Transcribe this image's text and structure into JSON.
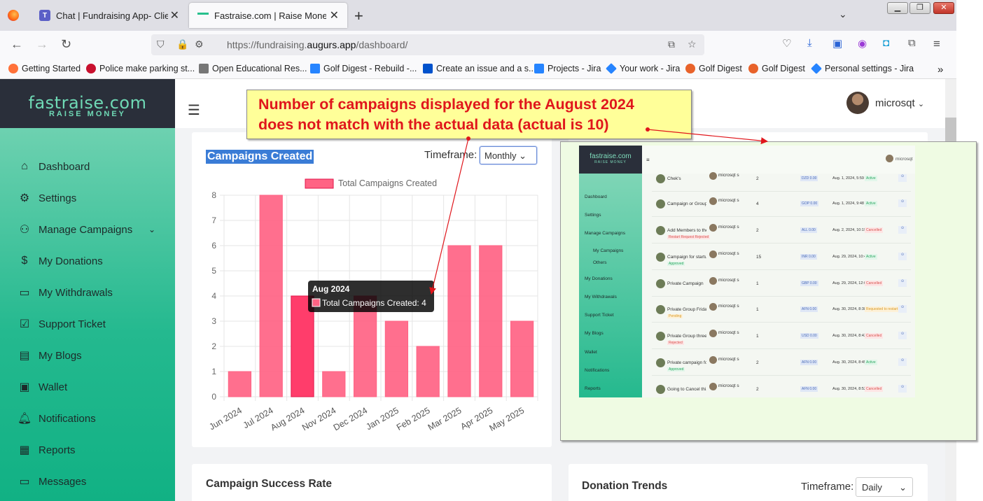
{
  "browser": {
    "tabs": [
      {
        "title": "Chat | Fundraising App- Client (",
        "icon": "teams-icon"
      },
      {
        "title": "Fastraise.com | Raise Money",
        "icon": "fastraise-icon"
      }
    ],
    "url_prefix": "https://fundraising.",
    "url_domain": "augurs.app",
    "url_suffix": "/dashboard/",
    "bookmarks": [
      {
        "label": "Getting Started",
        "color": "#ff7139"
      },
      {
        "label": "Police make parking st...",
        "color": "#c8102e"
      },
      {
        "label": "Open Educational Res...",
        "color": "#666666"
      },
      {
        "label": "Golf Digest - Rebuild -...",
        "color": "#2684ff"
      },
      {
        "label": "Create an issue and a s...",
        "color": "#0052cc"
      },
      {
        "label": "Projects - Jira",
        "color": "#2684ff"
      },
      {
        "label": "Your work - Jira",
        "color": "#2684ff"
      },
      {
        "label": "Golf Digest",
        "color": "#e8622a"
      },
      {
        "label": "Golf Digest",
        "color": "#e8622a"
      },
      {
        "label": "Personal settings - Jira",
        "color": "#2684ff"
      }
    ]
  },
  "brand": {
    "name": "fastraise.com",
    "tagline": "RAISE MONEY"
  },
  "sidebar": {
    "items": [
      {
        "label": "Dashboard",
        "icon": "home-icon"
      },
      {
        "label": "Settings",
        "icon": "gear-icon"
      },
      {
        "label": "Manage Campaigns",
        "icon": "users-icon"
      },
      {
        "label": "My Donations",
        "icon": "dollar-icon"
      },
      {
        "label": "My Withdrawals",
        "icon": "card-icon"
      },
      {
        "label": "Support Ticket",
        "icon": "ticket-icon"
      },
      {
        "label": "My Blogs",
        "icon": "blog-icon"
      },
      {
        "label": "Wallet",
        "icon": "wallet-icon"
      },
      {
        "label": "Notifications",
        "icon": "bell-icon"
      },
      {
        "label": "Reports",
        "icon": "report-icon"
      },
      {
        "label": "Messages",
        "icon": "message-icon"
      }
    ]
  },
  "header": {
    "username": "microsqt"
  },
  "campaigns_card": {
    "title": "Campaigns Created",
    "timeframe_label": "Timeframe:",
    "timeframe_value": "Monthly",
    "tooltip_title": "Aug 2024",
    "tooltip_body": "Total Campaigns Created: 4"
  },
  "chart_data": {
    "type": "bar",
    "categories": [
      "Jun 2024",
      "Jul 2024",
      "Aug 2024",
      "Nov 2024",
      "Dec 2024",
      "Jan 2025",
      "Feb 2025",
      "Mar 2025",
      "Apr 2025",
      "May 2025"
    ],
    "series": [
      {
        "name": "Total Campaigns Created",
        "values": [
          1,
          8,
          4,
          1,
          4,
          3,
          2,
          6,
          6,
          3
        ]
      }
    ],
    "ylim": [
      0,
      8
    ],
    "yticks": [
      0,
      1,
      2,
      3,
      4,
      5,
      6,
      7,
      8
    ],
    "grid": true,
    "legend": "top",
    "bar_color": "#ff6384"
  },
  "success_card": {
    "title": "Campaign Success Rate"
  },
  "trends_card": {
    "title": "Donation Trends",
    "timeframe_label": "Timeframe:",
    "timeframe_value": "Daily"
  },
  "annotation": {
    "line1": "Number of campaigns displayed for the August 2024",
    "line2": "does not match with the actual data (actual is 10)"
  },
  "inset": {
    "brand": "fastraise.com",
    "tagline": "RAISE MONEY",
    "user": "microsqt",
    "menu": [
      "Dashboard",
      "Settings",
      "Manage Campaigns",
      "My Campaigns",
      "Others",
      "My Donations",
      "My Withdrawals",
      "Support Ticket",
      "My Blogs",
      "Wallet",
      "Notifications",
      "Reports"
    ],
    "rows": [
      {
        "name": "Chek's",
        "user": "microsqt s",
        "count": "2",
        "amount": "DZD 0.00",
        "date": "Aug. 1, 2024, 5:59 a.m.",
        "status": "Active",
        "status_class": "st-active",
        "sub": ""
      },
      {
        "name": "Campaign or Group n...",
        "user": "microsqt s",
        "count": "4",
        "amount": "GOP 0.00",
        "date": "Aug. 1, 2024, 9:48 p.m.",
        "status": "Active",
        "status_class": "st-active",
        "sub": ""
      },
      {
        "name": "Add Members to the ...",
        "user": "microsqt s",
        "count": "2",
        "amount": "ALL 0.00",
        "date": "Aug. 2, 2024, 10:19 p.m.",
        "status": "Cancelled",
        "status_class": "st-cancel",
        "sub": "Restart Request Rejected"
      },
      {
        "name": "Campaign for startup",
        "user": "microsqt s",
        "count": "15",
        "amount": "INR 0.00",
        "date": "Aug. 29, 2024, 10:42 a.m.",
        "status": "Active",
        "status_class": "st-active",
        "sub": "Approved"
      },
      {
        "name": "Private Campaign",
        "user": "microsqt s",
        "count": "1",
        "amount": "GBP 0.00",
        "date": "Aug. 29, 2024, 12:01 p.m.",
        "status": "Cancelled",
        "status_class": "st-cancel",
        "sub": ""
      },
      {
        "name": "Private Group Friday",
        "user": "microsqt s",
        "count": "1",
        "amount": "AFN 0.00",
        "date": "Aug. 30, 2024, 8:38 a.m.",
        "status": "Requested to restart",
        "status_class": "st-req",
        "sub": "Pending"
      },
      {
        "name": "Private Group three",
        "user": "microsqt s",
        "count": "1",
        "amount": "USD 0.00",
        "date": "Aug. 30, 2024, 8:43 a.m.",
        "status": "Cancelled",
        "status_class": "st-cancel",
        "sub": "Rejected"
      },
      {
        "name": "Private campaign fo...",
        "user": "microsqt s",
        "count": "2",
        "amount": "AFN 0.00",
        "date": "Aug. 30, 2024, 8:45 a.m.",
        "status": "Active",
        "status_class": "st-active",
        "sub": "Approved"
      },
      {
        "name": "Going to Cancel thi...",
        "user": "microsqt s",
        "count": "2",
        "amount": "AFN 0.00",
        "date": "Aug. 30, 2024, 8:52 a.m.",
        "status": "Cancelled",
        "status_class": "st-cancel",
        "sub": ""
      }
    ]
  }
}
